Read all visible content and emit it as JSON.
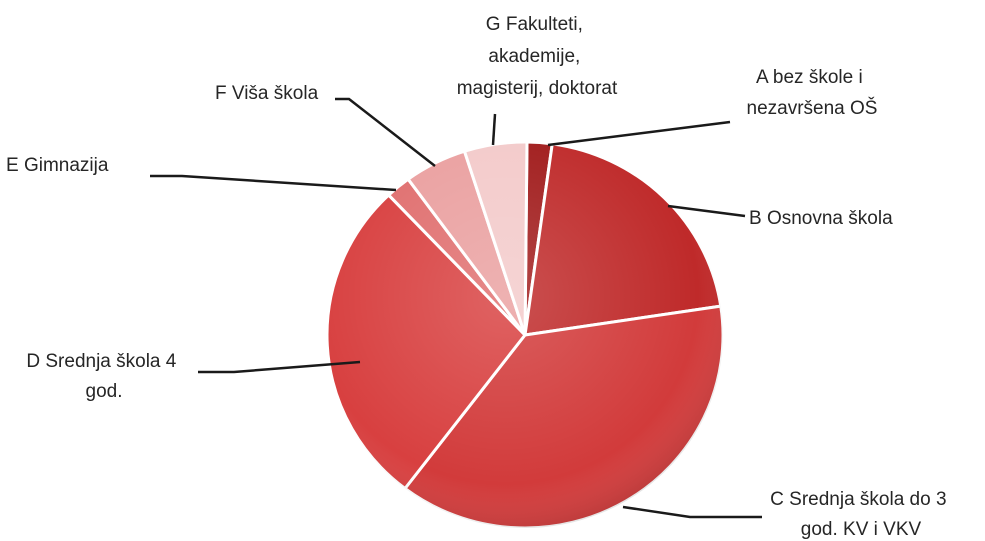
{
  "chart_data": {
    "type": "pie",
    "title": "",
    "categories": [
      "A bez škole i nezavršena OŠ",
      "B Osnovna škola",
      "C Srednja škola do 3 god. KV i VKV",
      "D Srednja škola 4 god.",
      "E Gimnazija",
      "F Viša škola",
      "G Fakulteti, akademije, magisterij, doktorat"
    ],
    "values": [
      2,
      20,
      37,
      27,
      2,
      5,
      5
    ],
    "unit": "%",
    "colors": [
      "#a11c1c",
      "#bf2a2a",
      "#d23b3b",
      "#d84040",
      "#e06f6f",
      "#eaa0a0",
      "#f3caca"
    ],
    "legend": "none",
    "labels": {
      "a": [
        "A bez škole i",
        "nezavršena OŠ"
      ],
      "b": [
        "B Osnovna škola"
      ],
      "c": [
        "C Srednja škola do 3",
        "god. KV i VKV"
      ],
      "d": [
        "D Srednja škola 4",
        "god."
      ],
      "e": [
        "E Gimnazija"
      ],
      "f": [
        "F Viša škola"
      ],
      "g": [
        "G Fakulteti,",
        "akademije,",
        "magisterij, doktorat"
      ]
    }
  }
}
